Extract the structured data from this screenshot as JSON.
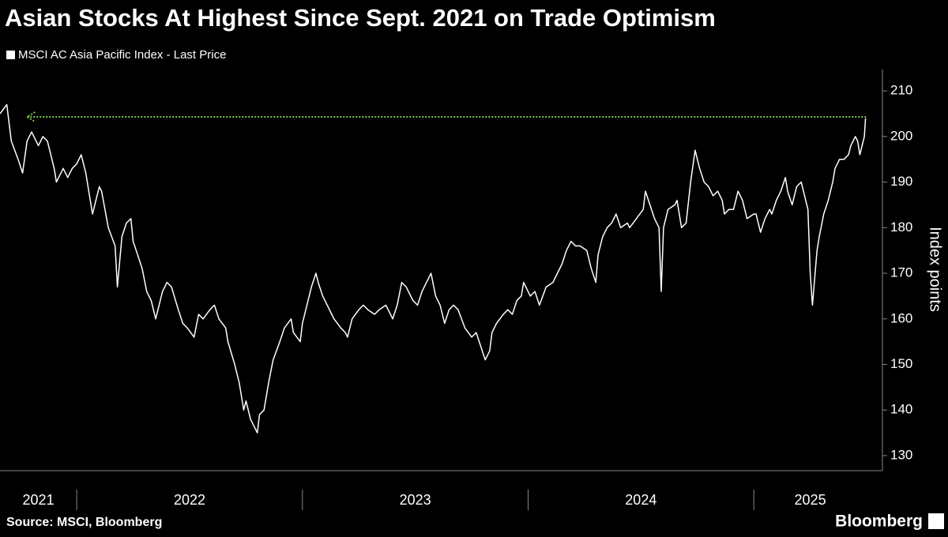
{
  "chart_data": {
    "type": "line",
    "title": "Asian Stocks At Highest Since Sept. 2021 on Trade Optimism",
    "y_label": "Index points",
    "source": "Source: MSCI, Bloomberg",
    "brand": "Bloomberg",
    "legend": "top-left",
    "xlim": [
      2021.66,
      2025.5
    ],
    "xticks": [
      2021,
      2022,
      2023,
      2024,
      2025
    ],
    "ylim": [
      126.7,
      214.7
    ],
    "yticks": [
      130,
      140,
      150,
      160,
      170,
      180,
      190,
      200,
      210
    ],
    "reference_line": {
      "value": 204.3,
      "x_start": 2021.78,
      "color": "#7ec850"
    },
    "x": [
      2021.66,
      2021.69,
      2021.71,
      2021.74,
      2021.76,
      2021.78,
      2021.8,
      2021.83,
      2021.85,
      2021.87,
      2021.9,
      2021.91,
      2021.94,
      2021.96,
      2021.98,
      2022.0,
      2022.02,
      2022.04,
      2022.07,
      2022.1,
      2022.11,
      2022.14,
      2022.17,
      2022.18,
      2022.2,
      2022.22,
      2022.24,
      2022.25,
      2022.27,
      2022.29,
      2022.31,
      2022.33,
      2022.35,
      2022.38,
      2022.4,
      2022.42,
      2022.45,
      2022.47,
      2022.49,
      2022.52,
      2022.54,
      2022.56,
      2022.59,
      2022.61,
      2022.63,
      2022.66,
      2022.67,
      2022.7,
      2022.72,
      2022.74,
      2022.75,
      2022.77,
      2022.8,
      2022.81,
      2022.83,
      2022.85,
      2022.87,
      2022.9,
      2022.92,
      2022.95,
      2022.96,
      2022.99,
      2023.0,
      2023.02,
      2023.04,
      2023.06,
      2023.07,
      2023.09,
      2023.11,
      2023.13,
      2023.14,
      2023.17,
      2023.19,
      2023.2,
      2023.22,
      2023.25,
      2023.27,
      2023.29,
      2023.32,
      2023.34,
      2023.37,
      2023.4,
      2023.42,
      2023.44,
      2023.46,
      2023.48,
      2023.49,
      2023.51,
      2023.53,
      2023.55,
      2023.57,
      2023.59,
      2023.61,
      2023.63,
      2023.65,
      2023.67,
      2023.69,
      2023.72,
      2023.75,
      2023.77,
      2023.79,
      2023.81,
      2023.83,
      2023.84,
      2023.86,
      2023.89,
      2023.91,
      2023.93,
      2023.95,
      2023.97,
      2023.98,
      2024.01,
      2024.03,
      2024.05,
      2024.08,
      2024.11,
      2024.13,
      2024.15,
      2024.17,
      2024.19,
      2024.21,
      2024.23,
      2024.26,
      2024.28,
      2024.3,
      2024.31,
      2024.33,
      2024.35,
      2024.37,
      2024.39,
      2024.41,
      2024.44,
      2024.45,
      2024.48,
      2024.51,
      2024.52,
      2024.54,
      2024.56,
      2024.58,
      2024.59,
      2024.6,
      2024.62,
      2024.65,
      2024.66,
      2024.68,
      2024.7,
      2024.72,
      2024.74,
      2024.76,
      2024.78,
      2024.8,
      2024.82,
      2024.84,
      2024.86,
      2024.87,
      2024.89,
      2024.91,
      2024.93,
      2024.95,
      2024.97,
      2025.0,
      2025.01,
      2025.03,
      2025.05,
      2025.07,
      2025.08,
      2025.1,
      2025.12,
      2025.14,
      2025.15,
      2025.17,
      2025.19,
      2025.21,
      2025.22,
      2025.24,
      2025.25,
      2025.26,
      2025.28,
      2025.29,
      2025.31,
      2025.33,
      2025.35,
      2025.36,
      2025.38,
      2025.4,
      2025.42,
      2025.43,
      2025.45,
      2025.46,
      2025.47,
      2025.49,
      2025.495
    ],
    "series": [
      {
        "name": "MSCI AC Asia Pacific Index - Last Price",
        "color": "#ffffff",
        "values": [
          205,
          207,
          199,
          195,
          192,
          199,
          201,
          198,
          200,
          199,
          193,
          190,
          193,
          191,
          193,
          194,
          196,
          192,
          183,
          189,
          188,
          180,
          176,
          167,
          178,
          181,
          182,
          177,
          174,
          171,
          166,
          164,
          160,
          166,
          168,
          167,
          162,
          159,
          158,
          156,
          161,
          160,
          162,
          163,
          160,
          158,
          155,
          150,
          146,
          140,
          142,
          138,
          135,
          139,
          140,
          146,
          151,
          155,
          158,
          160,
          157,
          155,
          159,
          163,
          167,
          170,
          168,
          165,
          163,
          161,
          160,
          158,
          157,
          156,
          160,
          162,
          163,
          162,
          161,
          162,
          163,
          160,
          163,
          168,
          167,
          165,
          164,
          163,
          166,
          168,
          170,
          165,
          163,
          159,
          162,
          163,
          162,
          158,
          156,
          157,
          154,
          151,
          153,
          157,
          159,
          161,
          162,
          161,
          164,
          165,
          168,
          165,
          166,
          163,
          167,
          168,
          170,
          172,
          175,
          177,
          176,
          176,
          175,
          171,
          168,
          174,
          178,
          180,
          181,
          183,
          180,
          181,
          180,
          182,
          184,
          188,
          185,
          182,
          180,
          166,
          180,
          184,
          185,
          186,
          180,
          181,
          190,
          197,
          193,
          190,
          189,
          187,
          188,
          186,
          183,
          184,
          184,
          188,
          186,
          182,
          183,
          183,
          179,
          182,
          184,
          183,
          186,
          188,
          191,
          188,
          185,
          189,
          190,
          188,
          184,
          170,
          163,
          175,
          178,
          183,
          186,
          190,
          193,
          195,
          195,
          196,
          198,
          200,
          199,
          196,
          200,
          204
        ]
      }
    ]
  }
}
